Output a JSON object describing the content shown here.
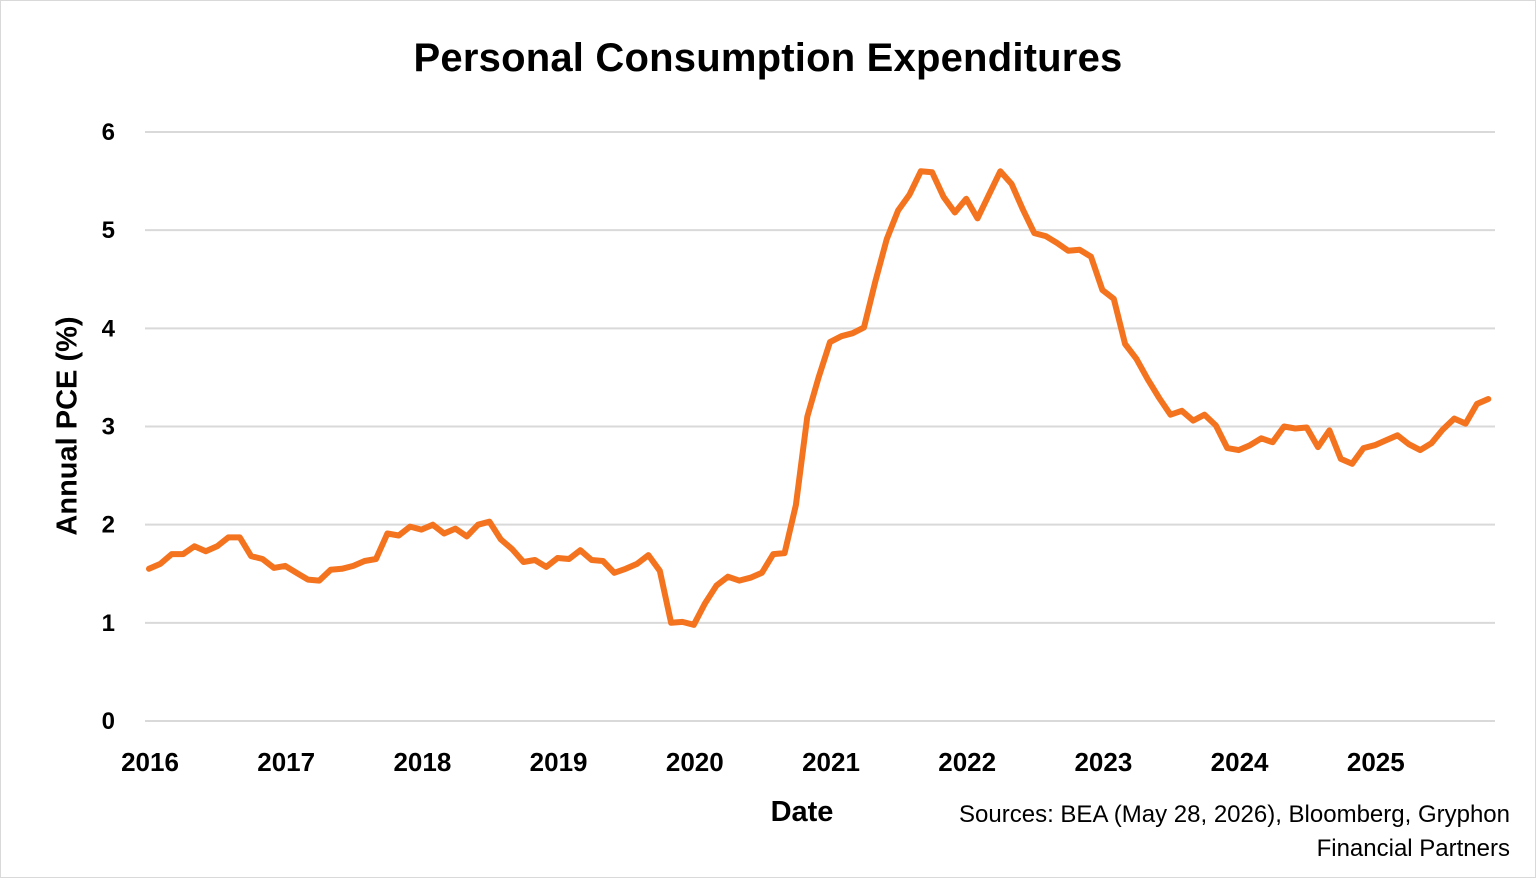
{
  "chart_data": {
    "type": "line",
    "title": "Personal Consumption Expenditures",
    "xlabel": "Date",
    "ylabel": "Annual PCE (%)",
    "source": "Sources: BEA (May 28, 2026), Bloomberg, Gryphon Financial Partners",
    "ylim": [
      0,
      6
    ],
    "yticks": [
      "0",
      "1",
      "2",
      "3",
      "4",
      "5",
      "6"
    ],
    "xlim": [
      2016.0,
      2025.92
    ],
    "xticks": [
      "2016",
      "2017",
      "2018",
      "2019",
      "2020",
      "2021",
      "2022",
      "2023",
      "2024",
      "2025"
    ],
    "grid": true,
    "legend": "none",
    "series": [
      {
        "color": "#f4731f",
        "x_start": "2016-01",
        "frequency": "monthly",
        "values": [
          1.55,
          1.6,
          1.7,
          1.7,
          1.78,
          1.73,
          1.78,
          1.87,
          1.87,
          1.68,
          1.65,
          1.56,
          1.58,
          1.51,
          1.44,
          1.43,
          1.54,
          1.55,
          1.58,
          1.63,
          1.65,
          1.91,
          1.89,
          1.98,
          1.95,
          2.0,
          1.91,
          1.96,
          1.88,
          2.0,
          2.03,
          1.85,
          1.75,
          1.62,
          1.64,
          1.57,
          1.66,
          1.65,
          1.74,
          1.64,
          1.63,
          1.51,
          1.55,
          1.6,
          1.69,
          1.53,
          1.0,
          1.01,
          0.98,
          1.2,
          1.38,
          1.47,
          1.43,
          1.46,
          1.51,
          1.7,
          1.71,
          2.2,
          3.1,
          3.5,
          3.86,
          3.92,
          3.95,
          4.01,
          4.48,
          4.91,
          5.2,
          5.36,
          5.6,
          5.59,
          5.34,
          5.18,
          5.32,
          5.12,
          5.36,
          5.6,
          5.47,
          5.21,
          4.97,
          4.94,
          4.87,
          4.79,
          4.8,
          4.73,
          4.39,
          4.3,
          3.84,
          3.69,
          3.48,
          3.29,
          3.12,
          3.16,
          3.06,
          3.12,
          3.01,
          2.78,
          2.76,
          2.81,
          2.88,
          2.84,
          3.0,
          2.98,
          2.99,
          2.79,
          2.96,
          2.67,
          2.62,
          2.78,
          2.81,
          2.86,
          2.91,
          2.82,
          2.76,
          2.83,
          2.97,
          3.08,
          3.03,
          3.23,
          3.28
        ]
      }
    ]
  }
}
